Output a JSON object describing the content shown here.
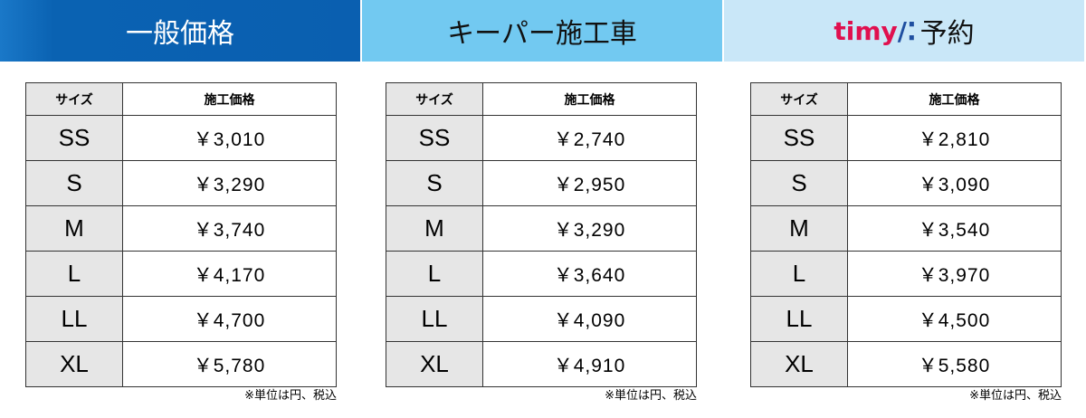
{
  "headers": {
    "general": "一般価格",
    "keeper": "キーパー施工車",
    "timy_logo": "timy",
    "timy_suffix": "予約"
  },
  "colors": {
    "general": "#0a5fb0",
    "keeper": "#72c9f1",
    "timy": "#c9e7f8",
    "timy_logo": "#e0104f"
  },
  "table_headers": {
    "size": "サイズ",
    "price": "施工価格"
  },
  "sizes": [
    "SS",
    "S",
    "M",
    "L",
    "LL",
    "XL"
  ],
  "tables": [
    {
      "prices": [
        "￥3,010",
        "￥3,290",
        "￥3,740",
        "￥4,170",
        "￥4,700",
        "￥5,780"
      ]
    },
    {
      "prices": [
        "￥2,740",
        "￥2,950",
        "￥3,290",
        "￥3,640",
        "￥4,090",
        "￥4,910"
      ]
    },
    {
      "prices": [
        "￥2,810",
        "￥3,090",
        "￥3,540",
        "￥3,970",
        "￥4,500",
        "￥5,580"
      ]
    }
  ],
  "note": "※単位は円、税込"
}
